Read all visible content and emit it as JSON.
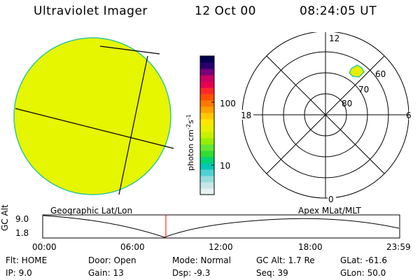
{
  "header": {
    "instrument": "Ultraviolet Imager",
    "date": "12 Oct 00",
    "time": "08:24:05 UT"
  },
  "colorbar": {
    "unit_label_html": "photon cm<tspan baseline-shift=\"super\" font-size=\"8\">-2</tspan>s<tspan baseline-shift=\"super\" font-size=\"8\">-1</tspan>",
    "ticks": [
      "100",
      "10"
    ],
    "colors": [
      "#e6f2f2",
      "#c8e6e6",
      "#96dcdc",
      "#50d2d2",
      "#00c8b4",
      "#00d278",
      "#32dc32",
      "#64e632",
      "#96f000",
      "#c8f000",
      "#e6f000",
      "#ffe600",
      "#ffc800",
      "#ffa000",
      "#ff7800",
      "#ff5000",
      "#ff2828",
      "#e60050",
      "#c80064",
      "#780078",
      "#28006e",
      "#000050"
    ]
  },
  "polar_plot": {
    "mlt_labels": {
      "top": "12",
      "right": "6",
      "bottom": "0",
      "left": "18"
    },
    "lat_labels": [
      "60",
      "70",
      "80"
    ]
  },
  "timeline": {
    "left_label": "Geographic Lat/Lon",
    "right_label": "Apex MLat/MLT",
    "axis_label": "GC Alt",
    "y_ticks": [
      "9.0",
      "1.8"
    ],
    "x_ticks": [
      "00:00",
      "06:00",
      "12:00",
      "18:00",
      "23:59"
    ],
    "marker_color": "#ff0000"
  },
  "status": {
    "flt": "Flt: HOME",
    "ip": "IP:  9.0",
    "door": "Door: Open",
    "gain": "Gain: 13",
    "mode": "Mode: Normal",
    "dsp": "Dsp:   -9.3",
    "gcalt": "GC Alt: 1.7 Re",
    "seq": "Seq: 39",
    "glat": "GLat: -61.6",
    "glon": "GLon:  50.0"
  },
  "colors": {
    "disk_fill": "#e6f500",
    "disk_edge": "#32c896",
    "auroral_blob": "#e6f000"
  }
}
